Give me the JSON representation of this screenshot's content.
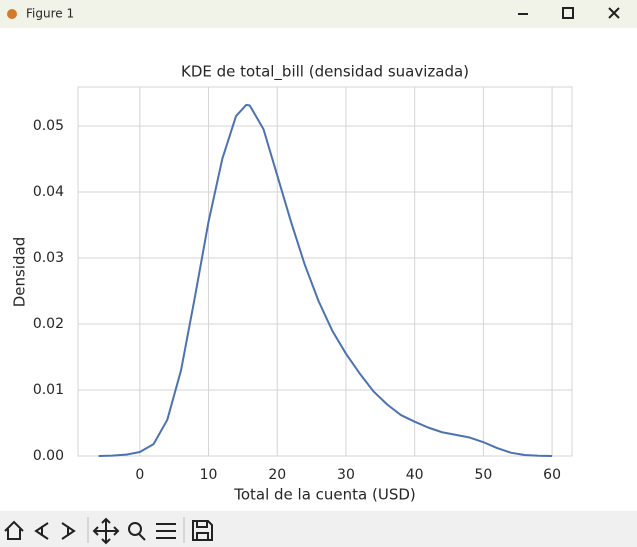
{
  "window_title": "Figure 1",
  "chart_data": {
    "type": "line",
    "title": "KDE de total_bill (densidad suavizada)",
    "xlabel": "Total de la cuenta (USD)",
    "ylabel": "Densidad",
    "color": "#4c72b0",
    "grid": true,
    "x": [
      -6,
      -4,
      -2,
      0,
      2,
      4,
      6,
      8,
      10,
      12,
      14,
      15.5,
      16,
      18,
      20,
      22,
      24,
      26,
      28,
      30,
      32,
      34,
      36,
      38,
      40,
      42,
      44,
      46,
      48,
      50,
      52,
      54,
      56,
      58,
      60
    ],
    "values": [
      0.0,
      5e-05,
      0.0002,
      0.0006,
      0.0018,
      0.0055,
      0.013,
      0.024,
      0.0355,
      0.045,
      0.0515,
      0.0532,
      0.0531,
      0.0495,
      0.0425,
      0.0355,
      0.029,
      0.0235,
      0.019,
      0.0155,
      0.0125,
      0.0098,
      0.0078,
      0.0062,
      0.0052,
      0.0043,
      0.0036,
      0.0032,
      0.0028,
      0.0021,
      0.0012,
      0.0005,
      0.00015,
      3e-05,
      0.0
    ],
    "xlim": [
      -9.0,
      62.9
    ],
    "ylim": [
      0,
      0.0559
    ],
    "xticks": [
      0,
      10,
      20,
      30,
      40,
      50,
      60
    ],
    "yticks": [
      {
        "value": 0,
        "label": "0.00"
      },
      0.01,
      0.02,
      0.03,
      0.04,
      0.05
    ]
  }
}
